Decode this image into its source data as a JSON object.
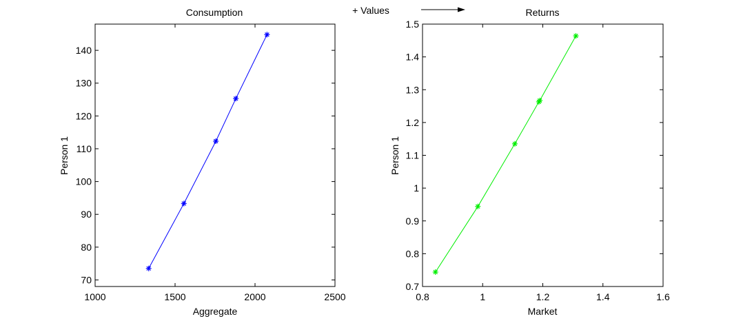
{
  "annotation": {
    "text": "+ Values",
    "arrow": "right-arrow"
  },
  "chart_data": [
    {
      "type": "line",
      "title": "Consumption",
      "xlabel": "Aggregate",
      "ylabel": "Person 1",
      "xlim": [
        1000,
        2500
      ],
      "ylim": [
        68,
        148
      ],
      "xticks": [
        1000,
        1500,
        2000,
        2500
      ],
      "xtick_labels": [
        "1000",
        "1500",
        "2000",
        "2500"
      ],
      "yticks": [
        70,
        80,
        90,
        100,
        110,
        120,
        130,
        140
      ],
      "ytick_labels": [
        "70",
        "80",
        "90",
        "100",
        "110",
        "120",
        "130",
        "140"
      ],
      "grid": false,
      "marker": "*",
      "color": "#0000ff",
      "series": [
        {
          "x": [
            1335,
            1555,
            1755,
            1880,
            2075
          ],
          "y": [
            73.5,
            93.3,
            112.3,
            125.3,
            144.8
          ]
        }
      ]
    },
    {
      "type": "line",
      "title": "Returns",
      "xlabel": "Market",
      "ylabel": "Person 1",
      "xlim": [
        0.8,
        1.6
      ],
      "ylim": [
        0.7,
        1.5
      ],
      "xticks": [
        0.8,
        1.0,
        1.2,
        1.4,
        1.6
      ],
      "xtick_labels": [
        "0.8",
        "1",
        "1.2",
        "1.4",
        "1.6"
      ],
      "yticks": [
        0.7,
        0.8,
        0.9,
        1.0,
        1.1,
        1.2,
        1.3,
        1.4,
        1.5
      ],
      "ytick_labels": [
        "0.7",
        "0.8",
        "0.9",
        "1",
        "1.1",
        "1.2",
        "1.3",
        "1.4",
        "1.5"
      ],
      "grid": false,
      "marker": "*",
      "color": "#00ee00",
      "series": [
        {
          "x": [
            0.843,
            0.984,
            1.107,
            1.187,
            1.19,
            1.31
          ],
          "y": [
            0.744,
            0.944,
            1.135,
            1.263,
            1.267,
            1.464
          ]
        }
      ]
    }
  ]
}
